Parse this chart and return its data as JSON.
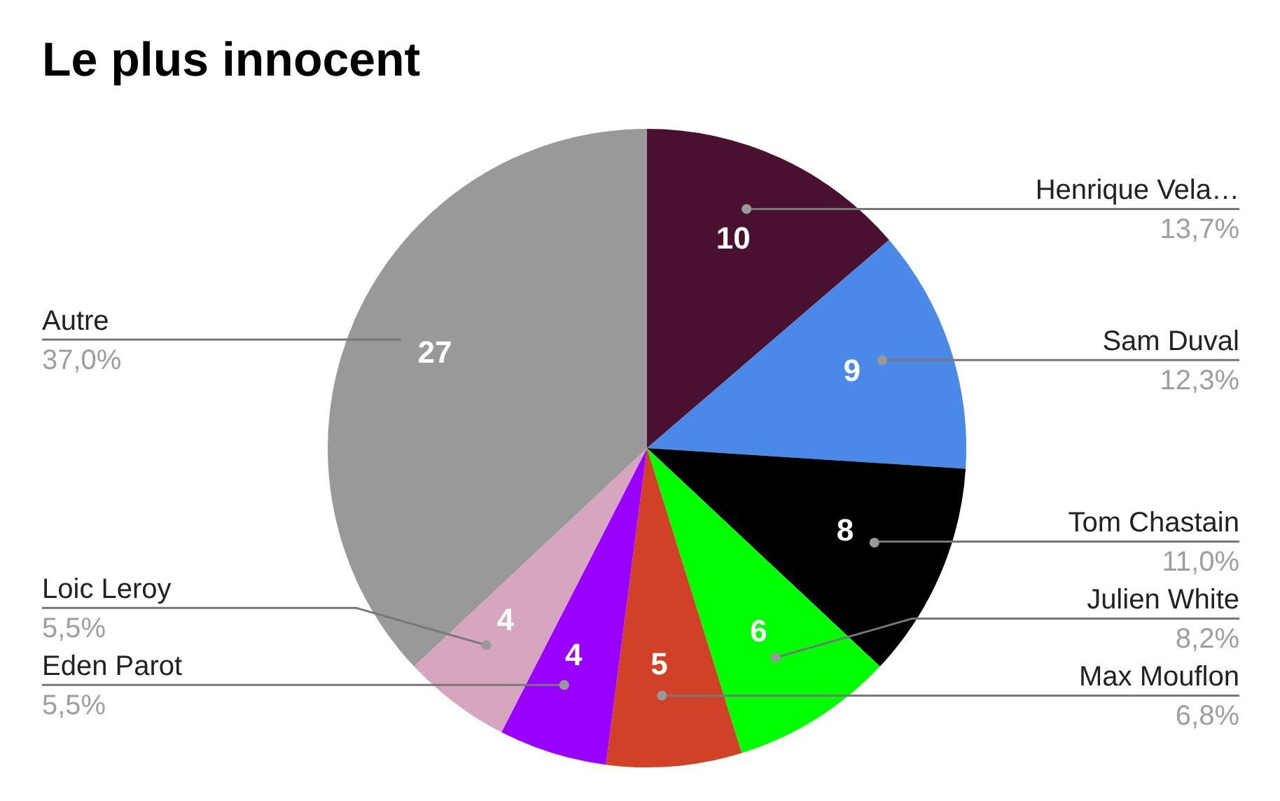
{
  "chart_data": {
    "type": "pie",
    "title": "Le plus innocent",
    "categories": [
      "Henrique Vela…",
      "Sam Duval",
      "Tom Chastain",
      "Julien White",
      "Max Mouflon",
      "Eden Parot",
      "Loic Leroy",
      "Autre"
    ],
    "values": [
      10,
      9,
      8,
      6,
      5,
      4,
      4,
      27
    ],
    "colors": [
      "#4a1030",
      "#4a89e8",
      "#000000",
      "#00ff00",
      "#d04127",
      "#9900ff",
      "#d5a6bd",
      "#999999"
    ],
    "annotations": [
      "13,7%",
      "12,3%",
      "11,0%",
      "8,2%",
      "6,8%",
      "5,5%",
      "5,5%",
      "37,0%"
    ],
    "data_labels": true
  }
}
